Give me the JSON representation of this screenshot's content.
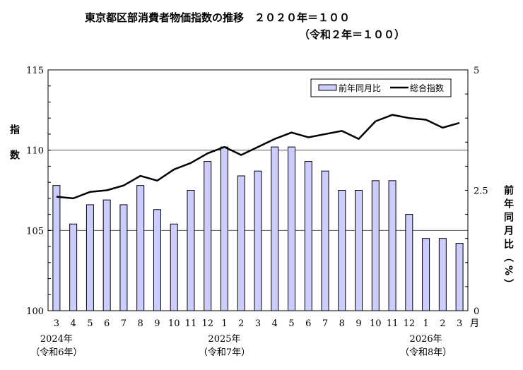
{
  "chart_data": {
    "type": "bar+line",
    "title": "東京都区部消費者物価指数の推移　２０２０年＝１００",
    "subtitle": "（令和２年＝１００）",
    "categories": [
      "3",
      "4",
      "5",
      "6",
      "7",
      "8",
      "9",
      "10",
      "11",
      "12",
      "1",
      "2",
      "3",
      "4",
      "5",
      "6",
      "7",
      "8",
      "9",
      "10",
      "11",
      "12",
      "1",
      "2",
      "3"
    ],
    "x_unit": "月",
    "year_labels": [
      {
        "at_index": 0,
        "year": "2024年",
        "era": "（令和6年）"
      },
      {
        "at_index": 10,
        "year": "2025年",
        "era": "（令和7年）"
      },
      {
        "at_index": 22,
        "year": "2026年",
        "era": "（令和8年）"
      }
    ],
    "ylabel_left": "指数",
    "ylabel_right": "前年同月比（%）",
    "ylim_left": [
      100,
      115
    ],
    "yticks_left": [
      "100",
      "105",
      "110",
      "115"
    ],
    "ylim_right": [
      0,
      5
    ],
    "yticks_right": [
      "0",
      "2.5",
      "5"
    ],
    "grid": [
      105,
      110
    ],
    "legend_position": "top-right",
    "series": [
      {
        "name": "前年同月比",
        "type": "bar",
        "axis": "right",
        "color": "#ccccff",
        "values": [
          2.6,
          1.8,
          2.2,
          2.3,
          2.2,
          2.6,
          2.1,
          1.8,
          2.5,
          3.1,
          3.4,
          2.8,
          2.9,
          3.4,
          3.4,
          3.1,
          2.9,
          2.5,
          2.5,
          2.7,
          2.7,
          2.0,
          1.5,
          1.5,
          1.4
        ]
      },
      {
        "name": "総合指数",
        "type": "line",
        "axis": "left",
        "color": "#000000",
        "values": [
          107.1,
          107.0,
          107.4,
          107.5,
          107.8,
          108.4,
          108.1,
          108.8,
          109.2,
          109.8,
          110.2,
          109.7,
          110.2,
          110.7,
          111.1,
          110.8,
          111.0,
          111.2,
          110.7,
          111.8,
          112.2,
          112.0,
          111.9,
          111.4,
          111.7
        ]
      }
    ]
  }
}
